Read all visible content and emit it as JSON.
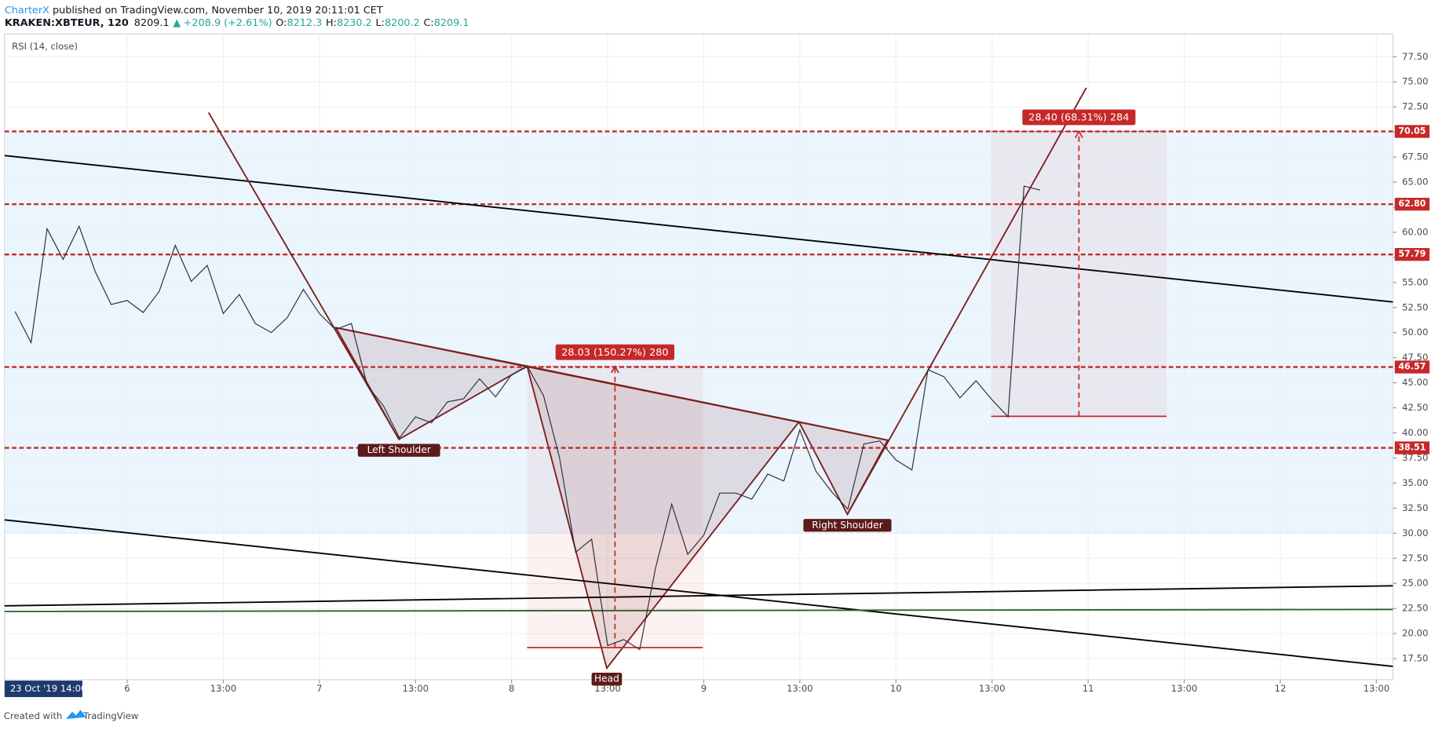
{
  "header": {
    "author": "CharterX",
    "published": "published on TradingView.com, November 10, 2019 20:11:01 CET",
    "symbol": "KRAKEN:XBTEUR, 120",
    "last": "8209.1",
    "change": "+208.9 (+2.61%)",
    "ohlc": [
      {
        "key": "O:",
        "value": "8212.3"
      },
      {
        "key": "H:",
        "value": "8230.2"
      },
      {
        "key": "L:",
        "value": "8200.2"
      },
      {
        "key": "C:",
        "value": "8209.1"
      }
    ]
  },
  "footer": {
    "created": "Created with",
    "brand": "TradingView"
  },
  "chart_data": {
    "type": "line",
    "legend": "RSI (14, close)",
    "date_badge": "23 Oct '19  14:00",
    "xlim": [
      -15.31,
      158.06
    ],
    "ylim": [
      15.4,
      79.78
    ],
    "xticks": [
      {
        "value": 0,
        "label": "6"
      },
      {
        "value": 12,
        "label": "13:00"
      },
      {
        "value": 24,
        "label": "7"
      },
      {
        "value": 36,
        "label": "13:00"
      },
      {
        "value": 48,
        "label": "8"
      },
      {
        "value": 60,
        "label": "13:00"
      },
      {
        "value": 72,
        "label": "9"
      },
      {
        "value": 84,
        "label": "13:00"
      },
      {
        "value": 96,
        "label": "10"
      },
      {
        "value": 108,
        "label": "13:00"
      },
      {
        "value": 120,
        "label": "11"
      },
      {
        "value": 132,
        "label": "13:00"
      },
      {
        "value": 144,
        "label": "12"
      },
      {
        "value": 156,
        "label": "13:00"
      }
    ],
    "yticks": [
      {
        "value": 17.5,
        "label": "17.50"
      },
      {
        "value": 20,
        "label": "20.00"
      },
      {
        "value": 22.5,
        "label": "22.50"
      },
      {
        "value": 25,
        "label": "25.00"
      },
      {
        "value": 27.5,
        "label": "27.50"
      },
      {
        "value": 30,
        "label": "30.00"
      },
      {
        "value": 32.5,
        "label": "32.50"
      },
      {
        "value": 35,
        "label": "35.00"
      },
      {
        "value": 37.5,
        "label": "37.50"
      },
      {
        "value": 40,
        "label": "40.00"
      },
      {
        "value": 42.5,
        "label": "42.50"
      },
      {
        "value": 45,
        "label": "45.00"
      },
      {
        "value": 47.5,
        "label": "47.50"
      },
      {
        "value": 50,
        "label": "50.00"
      },
      {
        "value": 52.5,
        "label": "52.50"
      },
      {
        "value": 55,
        "label": "55.00"
      },
      {
        "value": 57.5,
        "label": "57.50"
      },
      {
        "value": 60,
        "label": "60.00"
      },
      {
        "value": 62.5,
        "label": "62.50"
      },
      {
        "value": 65,
        "label": "65.00"
      },
      {
        "value": 67.5,
        "label": "67.50"
      },
      {
        "value": 70,
        "label": "70.00"
      },
      {
        "value": 72.5,
        "label": "72.50"
      },
      {
        "value": 75,
        "label": "75.00"
      },
      {
        "value": 77.5,
        "label": "77.50"
      }
    ],
    "grid": true,
    "band": [
      30,
      70
    ],
    "band_color": "#e3f2fd",
    "x": [
      -14,
      -12,
      -10,
      -8,
      -6,
      -4,
      -2,
      0,
      2,
      4,
      6,
      8,
      10,
      12,
      14,
      16,
      18,
      20,
      22,
      24,
      26,
      28,
      30,
      32,
      34,
      36,
      38,
      40,
      42,
      44,
      46,
      48,
      50,
      52,
      54,
      56,
      58,
      60,
      62,
      64,
      66,
      68,
      70,
      72,
      74,
      76,
      78,
      80,
      82,
      84,
      86,
      88,
      90,
      92,
      94,
      96,
      98,
      100,
      102,
      104,
      106,
      108,
      110,
      112,
      114
    ],
    "series": [
      {
        "name": "RSI",
        "color": "#2a2e39",
        "values": [
          52.1,
          49.0,
          60.35,
          57.3,
          60.6,
          56.1,
          52.8,
          53.2,
          52.0,
          54.1,
          58.7,
          55.1,
          56.7,
          51.9,
          53.8,
          50.9,
          50.0,
          51.5,
          54.3,
          51.9,
          50.3,
          50.9,
          44.7,
          42.7,
          39.5,
          41.6,
          41.0,
          43.1,
          43.4,
          45.4,
          43.6,
          45.8,
          46.6,
          43.7,
          37.5,
          28.1,
          29.4,
          18.8,
          19.4,
          18.4,
          26.6,
          32.9,
          27.9,
          29.8,
          34.0,
          34.0,
          33.4,
          35.9,
          35.2,
          40.3,
          36.2,
          34.1,
          32.4,
          38.9,
          39.2,
          37.3,
          36.3,
          46.3,
          45.6,
          43.5,
          45.2,
          43.3,
          41.6,
          64.6,
          64.2
        ]
      }
    ],
    "level_color": "#c62828",
    "levels": [
      {
        "value": 70.05,
        "label": "70.05"
      },
      {
        "value": 62.8,
        "label": "62.80"
      },
      {
        "value": 57.79,
        "label": "57.79"
      },
      {
        "value": 46.57,
        "label": "46.57"
      },
      {
        "value": 38.51,
        "label": "38.51"
      }
    ],
    "trendlines": [
      {
        "color": "#000000",
        "x": [
          -15.31,
          158.06
        ],
        "y": [
          67.65,
          53.05
        ]
      },
      {
        "color": "#000000",
        "x": [
          -15.31,
          158.06
        ],
        "y": [
          31.33,
          16.73
        ]
      },
      {
        "color": "#000000",
        "x": [
          -15.31,
          158.06
        ],
        "y": [
          22.76,
          24.76
        ]
      },
      {
        "color": "#2e5e2e",
        "x": [
          -15.31,
          158.06
        ],
        "y": [
          22.2,
          22.4
        ]
      },
      {
        "color": "#7b1f1f",
        "x": [
          10.17,
          33.94
        ],
        "y": [
          71.93,
          39.36
        ]
      },
      {
        "color": "#7b1f1f",
        "x": [
          26.06,
          94.97
        ],
        "y": [
          50.49,
          39.27
        ]
      },
      {
        "color": "#7b1f1f",
        "x": [
          89.94,
          119.77
        ],
        "y": [
          31.88,
          74.4
        ]
      }
    ],
    "pattern": {
      "color": "#7b1f1f",
      "label_color": "#5d1a1a",
      "shapes": [
        {
          "label": "Left Shoulder",
          "x": [
            26.06,
            33.94,
            49.94
          ],
          "y": [
            50.49,
            39.36,
            46.66
          ]
        },
        {
          "label": "Head",
          "x": [
            49.94,
            59.89,
            83.89
          ],
          "y": [
            46.66,
            16.55,
            41.1
          ]
        },
        {
          "label": "Right Shoulder",
          "x": [
            83.89,
            89.94,
            94.97
          ],
          "y": [
            41.1,
            31.88,
            39.27
          ]
        }
      ]
    },
    "measures": [
      {
        "label": "28.03 (150.27%) 280",
        "x": [
          49.94,
          71.89
        ],
        "y": [
          18.6,
          46.63
        ]
      },
      {
        "label": "28.40 (68.31%) 284",
        "x": [
          107.9,
          129.8
        ],
        "y": [
          41.65,
          70.05
        ]
      }
    ]
  }
}
